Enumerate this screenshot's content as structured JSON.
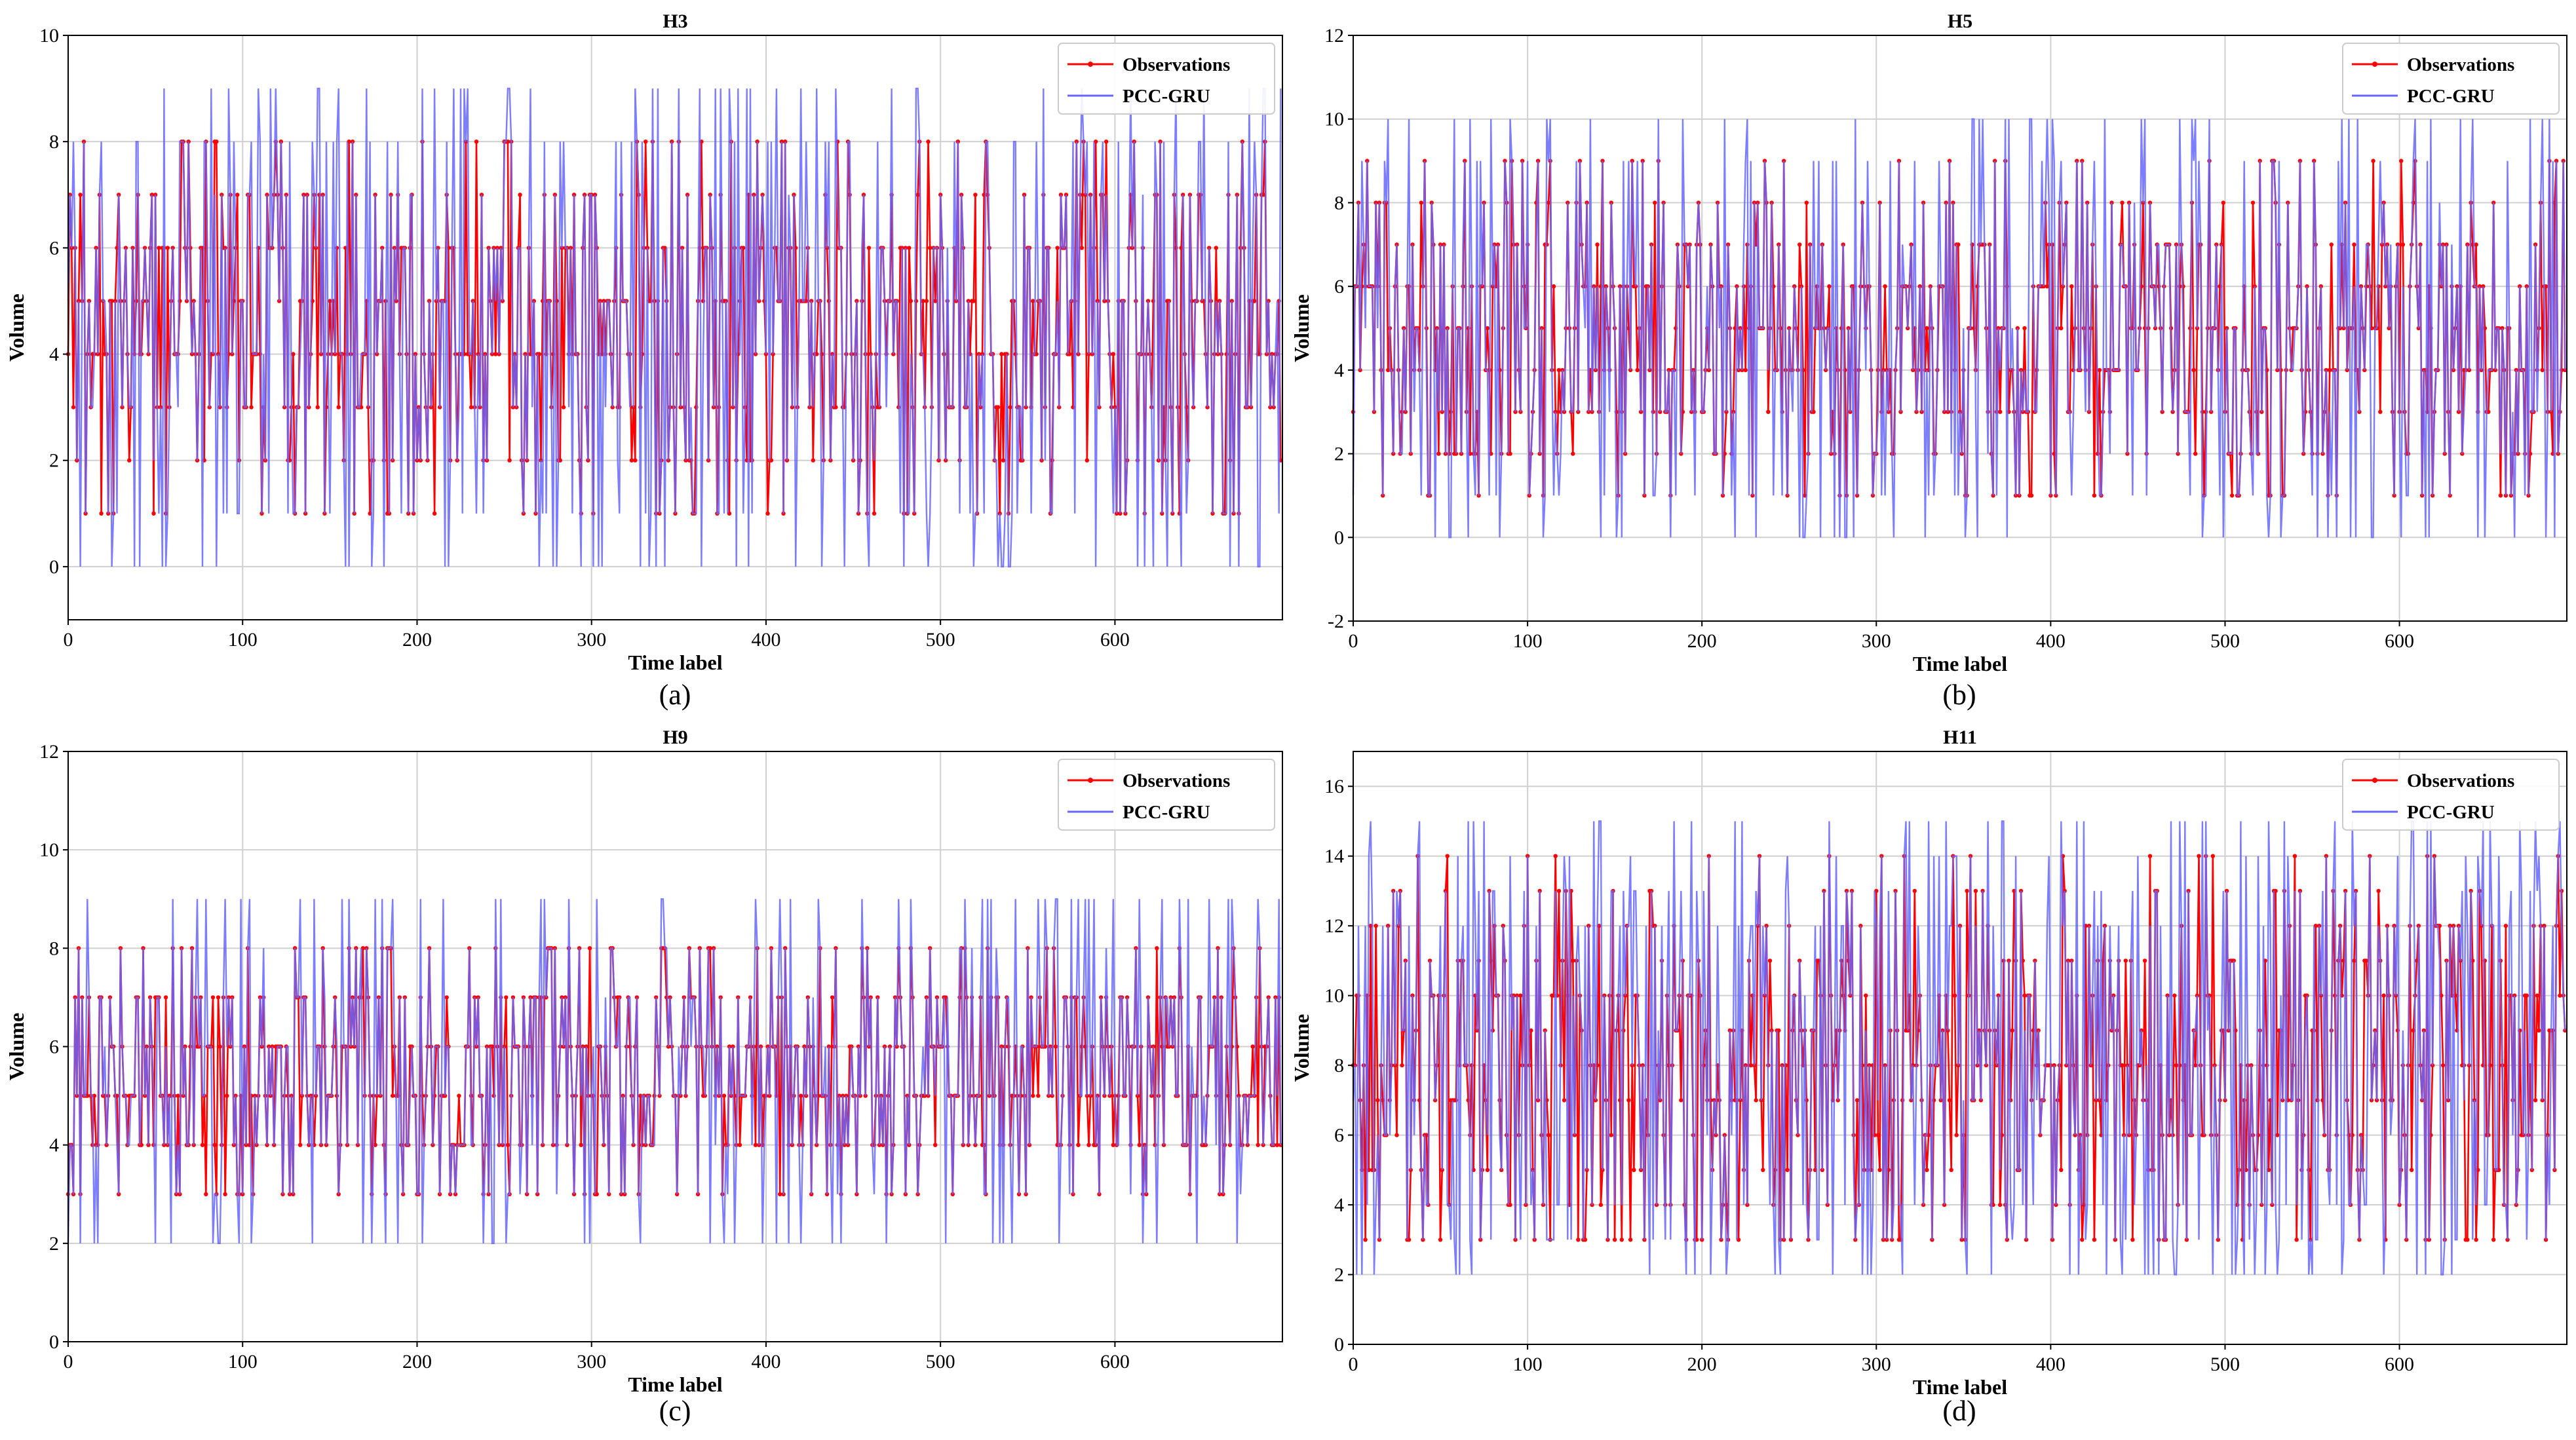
{
  "figure_title": "",
  "colors": {
    "observations": "#ff0000",
    "prediction": "#6666ff",
    "grid": "#d0d0d0",
    "axis": "#000000"
  },
  "chart_data": [
    {
      "type": "line",
      "title": "H3",
      "caption": "(a)",
      "xlabel": "Time label",
      "ylabel": "Volume",
      "xlim": [
        0,
        696
      ],
      "ylim": [
        -1,
        10
      ],
      "xticks": [
        0,
        100,
        200,
        300,
        400,
        500,
        600
      ],
      "yticks": [
        0,
        2,
        4,
        6,
        8,
        10
      ],
      "legend": {
        "position": "top-right",
        "entries": [
          "Observations",
          "PCC-GRU"
        ]
      },
      "series": [
        {
          "name": "Observations",
          "color": "#ff0000",
          "marker": "dot",
          "n_points": 696,
          "values_range": [
            1,
            8
          ],
          "typical_level": 4.5,
          "seed": 3301
        },
        {
          "name": "PCC-GRU",
          "color": "#6666ff",
          "marker": "none",
          "n_points": 696,
          "values_range": [
            0,
            9
          ],
          "typical_level": 4.5,
          "seed": 3302
        }
      ]
    },
    {
      "type": "line",
      "title": "H5",
      "caption": "(b)",
      "xlabel": "Time label",
      "ylabel": "Volume",
      "xlim": [
        0,
        696
      ],
      "ylim": [
        -2,
        12
      ],
      "xticks": [
        0,
        100,
        200,
        300,
        400,
        500,
        600
      ],
      "yticks": [
        -2,
        0,
        2,
        4,
        6,
        8,
        10,
        12
      ],
      "legend": {
        "position": "top-right",
        "entries": [
          "Observations",
          "PCC-GRU"
        ]
      },
      "series": [
        {
          "name": "Observations",
          "color": "#ff0000",
          "marker": "dot",
          "n_points": 696,
          "values_range": [
            1,
            9
          ],
          "typical_level": 5,
          "seed": 5501
        },
        {
          "name": "PCC-GRU",
          "color": "#6666ff",
          "marker": "none",
          "n_points": 696,
          "values_range": [
            0,
            10
          ],
          "typical_level": 5,
          "seed": 5502
        }
      ]
    },
    {
      "type": "line",
      "title": "H9",
      "caption": "(c)",
      "xlabel": "Time label",
      "ylabel": "Volume",
      "xlim": [
        0,
        696
      ],
      "ylim": [
        0,
        12
      ],
      "xticks": [
        0,
        100,
        200,
        300,
        400,
        500,
        600
      ],
      "yticks": [
        0,
        2,
        4,
        6,
        8,
        10,
        12
      ],
      "legend": {
        "position": "top-right",
        "entries": [
          "Observations",
          "PCC-GRU"
        ]
      },
      "series": [
        {
          "name": "Observations",
          "color": "#ff0000",
          "marker": "dot",
          "n_points": 696,
          "values_range": [
            3,
            8
          ],
          "typical_level": 5.5,
          "seed": 9901
        },
        {
          "name": "PCC-GRU",
          "color": "#6666ff",
          "marker": "none",
          "n_points": 696,
          "values_range": [
            2,
            9
          ],
          "typical_level": 5.5,
          "seed": 9902
        }
      ]
    },
    {
      "type": "line",
      "title": "H11",
      "caption": "(d)",
      "xlabel": "Time label",
      "ylabel": "Volume",
      "xlim": [
        0,
        696
      ],
      "ylim": [
        0,
        17
      ],
      "xticks": [
        0,
        100,
        200,
        300,
        400,
        500,
        600
      ],
      "yticks": [
        0,
        2,
        4,
        6,
        8,
        10,
        12,
        14,
        16
      ],
      "legend": {
        "position": "top-right",
        "entries": [
          "Observations",
          "PCC-GRU"
        ]
      },
      "series": [
        {
          "name": "Observations",
          "color": "#ff0000",
          "marker": "dot",
          "n_points": 696,
          "values_range": [
            3,
            14
          ],
          "typical_level": 8,
          "seed": 1101
        },
        {
          "name": "PCC-GRU",
          "color": "#6666ff",
          "marker": "none",
          "n_points": 696,
          "values_range": [
            2,
            15
          ],
          "typical_level": 8,
          "seed": 1102
        }
      ]
    }
  ]
}
